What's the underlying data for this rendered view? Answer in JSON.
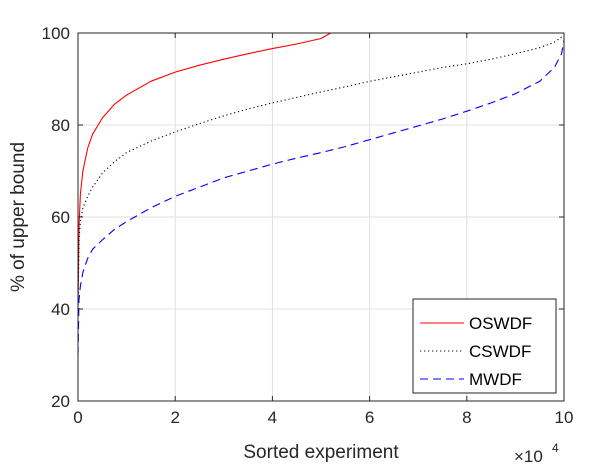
{
  "chart_data": {
    "type": "line",
    "title": "",
    "xlabel": "Sorted experiment",
    "ylabel": "% of upper bound",
    "x_multiplier_label": "×10",
    "x_multiplier_exponent": "4",
    "xlim": [
      0,
      100000
    ],
    "ylim": [
      20,
      100
    ],
    "x_ticks": [
      0,
      20000,
      40000,
      60000,
      80000,
      100000
    ],
    "x_tick_labels": [
      "0",
      "2",
      "4",
      "6",
      "8",
      "10"
    ],
    "y_ticks": [
      20,
      40,
      60,
      80,
      100
    ],
    "y_tick_labels": [
      "20",
      "40",
      "60",
      "80",
      "100"
    ],
    "grid": true,
    "legend_position": "bottom-right",
    "series": [
      {
        "name": "OSWDF",
        "color": "#ff0000",
        "style": "solid",
        "x": [
          0,
          200,
          500,
          1000,
          2000,
          3000,
          5000,
          7500,
          10000,
          15000,
          20000,
          25000,
          30000,
          35000,
          40000,
          45000,
          50000,
          52000,
          60000,
          70000,
          80000,
          90000,
          100000
        ],
        "y": [
          40,
          58,
          65,
          70,
          75,
          78,
          81.5,
          84.5,
          86.5,
          89.5,
          91.5,
          93.0,
          94.3,
          95.5,
          96.6,
          97.6,
          98.8,
          100,
          100,
          100,
          100,
          100,
          100
        ]
      },
      {
        "name": "CSWDF",
        "color": "#000000",
        "style": "dotted",
        "x": [
          0,
          200,
          500,
          1000,
          2000,
          3000,
          5000,
          7500,
          10000,
          15000,
          20000,
          25000,
          30000,
          35000,
          40000,
          45000,
          50000,
          55000,
          60000,
          65000,
          70000,
          75000,
          80000,
          85000,
          90000,
          95000,
          98000,
          100000
        ],
        "y": [
          40,
          55,
          59,
          62,
          64.5,
          66.5,
          69.5,
          72.0,
          74.0,
          76.5,
          78.5,
          80.3,
          82.0,
          83.5,
          84.8,
          86.0,
          87.2,
          88.3,
          89.5,
          90.5,
          91.5,
          92.5,
          93.3,
          94.3,
          95.5,
          96.8,
          98.0,
          99.5
        ]
      },
      {
        "name": "MWDF",
        "color": "#0000ff",
        "style": "dashed",
        "x": [
          0,
          200,
          500,
          1000,
          2000,
          3000,
          5000,
          7500,
          10000,
          15000,
          20000,
          25000,
          30000,
          35000,
          40000,
          45000,
          50000,
          55000,
          60000,
          65000,
          70000,
          75000,
          80000,
          85000,
          90000,
          95000,
          98000,
          99500,
          100000
        ],
        "y": [
          30,
          42,
          45,
          48,
          51,
          53,
          55.0,
          57.3,
          59.0,
          62.0,
          64.5,
          66.5,
          68.5,
          70.0,
          71.5,
          72.8,
          74.0,
          75.3,
          76.8,
          78.3,
          79.8,
          81.3,
          83.0,
          84.8,
          86.8,
          89.5,
          92.5,
          95.5,
          98.5
        ]
      }
    ]
  }
}
